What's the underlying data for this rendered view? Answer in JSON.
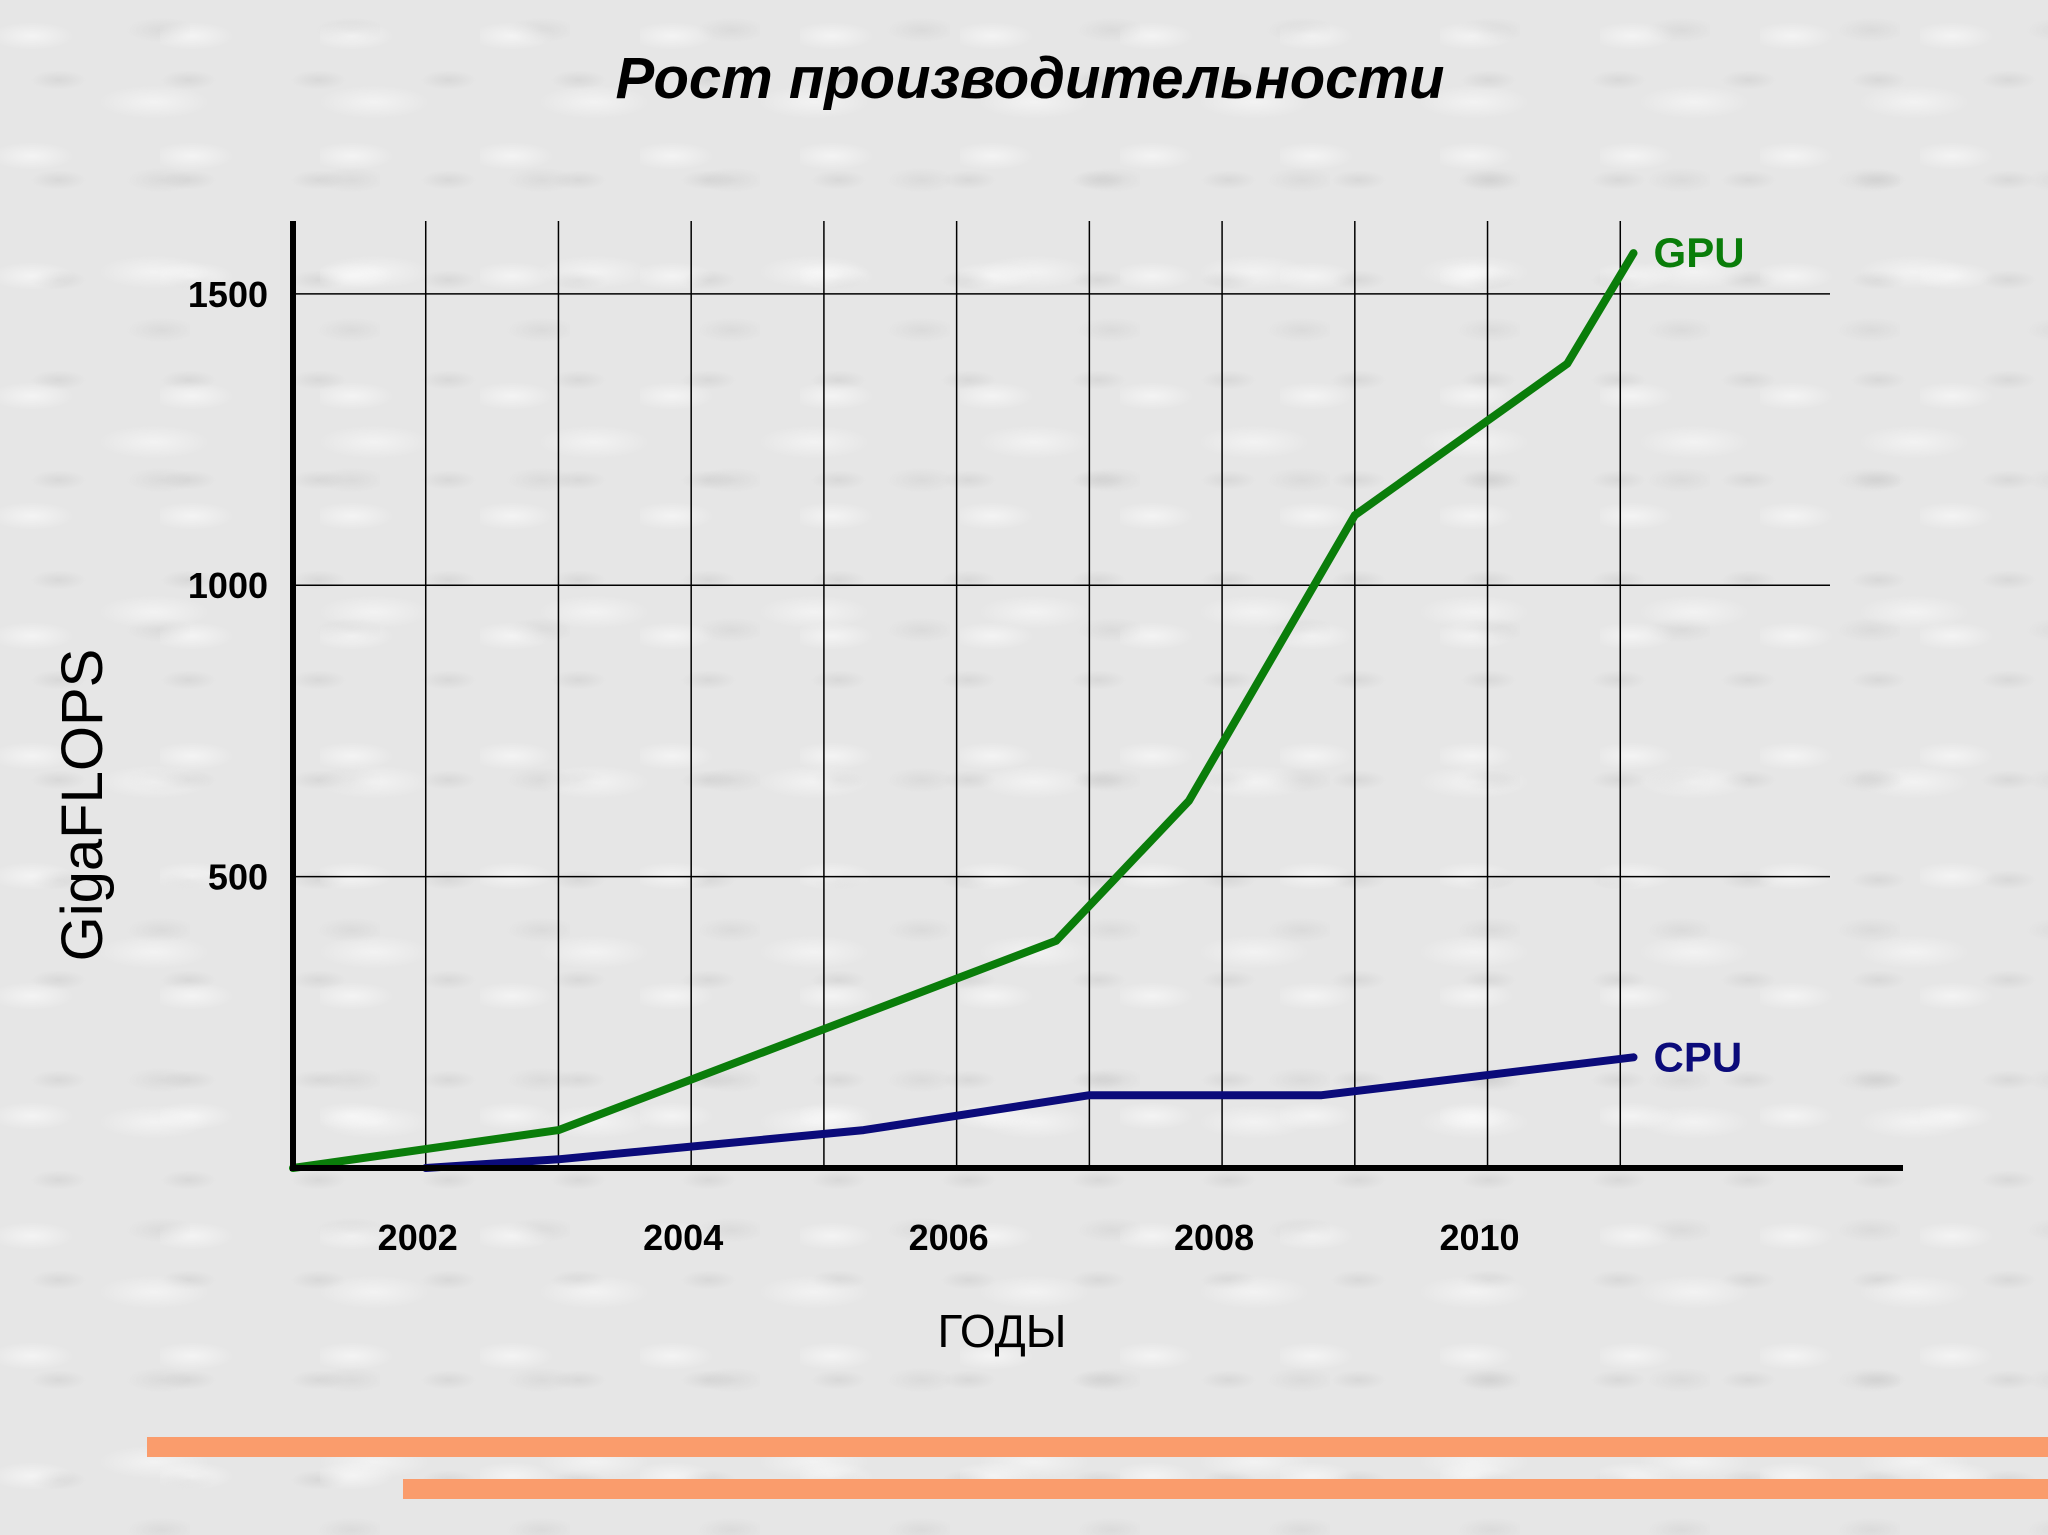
{
  "chart_data": {
    "type": "line",
    "title": "Рост производительности",
    "xlabel": "ГОДЫ",
    "ylabel": "GigaFLOPS",
    "xlim": [
      2001,
      2012
    ],
    "ylim": [
      0,
      1625
    ],
    "x_ticks": [
      2002,
      2004,
      2006,
      2008,
      2010
    ],
    "y_ticks": [
      500,
      1000,
      1500
    ],
    "grid": true,
    "series": [
      {
        "name": "GPU",
        "color": "#0a7d0a",
        "points": [
          [
            2001,
            0
          ],
          [
            2003,
            65
          ],
          [
            2006.75,
            390
          ],
          [
            2007.75,
            630
          ],
          [
            2009,
            1120
          ],
          [
            2010.6,
            1380
          ],
          [
            2011.1,
            1570
          ]
        ]
      },
      {
        "name": "CPU",
        "color": "#0b0b7a",
        "points": [
          [
            2002,
            0
          ],
          [
            2003,
            15
          ],
          [
            2005.3,
            65
          ],
          [
            2007,
            125
          ],
          [
            2008.75,
            125
          ],
          [
            2011.1,
            190
          ]
        ]
      }
    ]
  },
  "colors": {
    "decoration": "#fa9c6c",
    "grid": "#000000"
  }
}
